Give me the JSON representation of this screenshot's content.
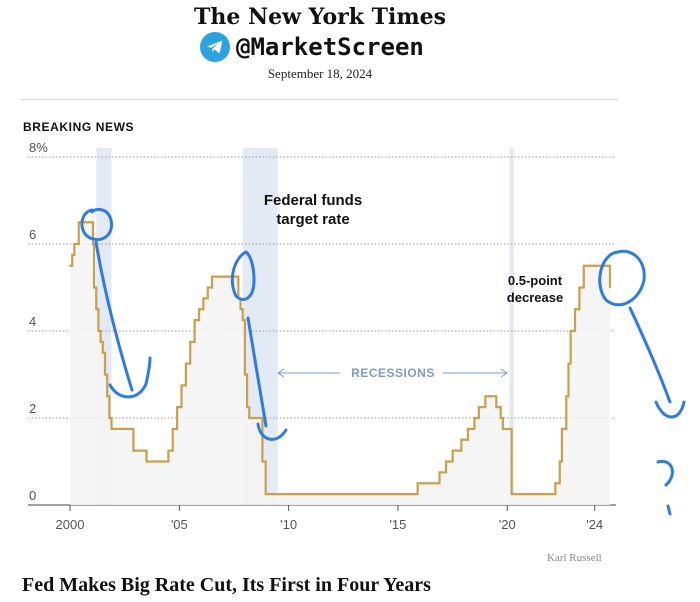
{
  "header": {
    "masthead": "The New York Times",
    "telegram_handle": "@MarketScreen",
    "date": "September 18, 2024",
    "kicker": "BREAKING NEWS"
  },
  "footer": {
    "credit": "Karl Russell",
    "headline": "Fed Makes Big Rate Cut, Its First in Four Years"
  },
  "colors": {
    "line": "#c9a04e",
    "area": "#f4f4f4",
    "recession": "#e3eaf4",
    "recession_label": "#7e9cc4",
    "grid": "#9a9a9a",
    "annotation_ink": "#2f7be0",
    "telegram": "#2ba3de"
  },
  "chart_data": {
    "type": "line",
    "title": "Federal funds target rate",
    "ylim": [
      0,
      8
    ],
    "xlim": [
      2000,
      2024.7
    ],
    "y_ticks": [
      0,
      2,
      4,
      6,
      8
    ],
    "y_tick_labels": [
      "0",
      "2",
      "4",
      "6",
      "8%"
    ],
    "x_ticks": [
      2000,
      2005,
      2010,
      2015,
      2020,
      2024
    ],
    "x_tick_labels": [
      "2000",
      "'05",
      "'10",
      "'15",
      "'20",
      "'24"
    ],
    "grid": true,
    "recessions": [
      [
        2001.2,
        2001.9
      ],
      [
        2007.9,
        2009.5
      ],
      [
        2020.1,
        2020.3
      ]
    ],
    "recession_label": "RECESSIONS",
    "annotations": [
      "Federal funds target rate",
      "0.5-point decrease"
    ],
    "handwritten_marks": [
      "?"
    ],
    "series": [
      {
        "x": [
          2000.0,
          2000.1,
          2000.2,
          2000.4,
          2000.9,
          2001.05,
          2001.1,
          2001.2,
          2001.3,
          2001.4,
          2001.5,
          2001.6,
          2001.7,
          2001.8,
          2001.9,
          2002.9,
          2003.5,
          2004.5,
          2004.7,
          2004.9,
          2005.1,
          2005.3,
          2005.5,
          2005.7,
          2005.9,
          2006.1,
          2006.3,
          2006.5,
          2007.7,
          2007.8,
          2007.9,
          2008.0,
          2008.1,
          2008.2,
          2008.8,
          2008.95,
          2015.9,
          2016.9,
          2017.2,
          2017.5,
          2017.9,
          2018.2,
          2018.5,
          2018.7,
          2019.0,
          2019.5,
          2019.7,
          2019.8,
          2020.2,
          2022.2,
          2022.4,
          2022.5,
          2022.7,
          2022.8,
          2022.9,
          2023.1,
          2023.3,
          2023.5,
          2024.7
        ],
        "y": [
          5.5,
          5.75,
          6.0,
          6.5,
          6.5,
          6.0,
          5.0,
          4.5,
          4.0,
          3.75,
          3.5,
          3.0,
          2.5,
          2.0,
          1.75,
          1.25,
          1.0,
          1.25,
          1.75,
          2.25,
          2.75,
          3.25,
          3.75,
          4.25,
          4.5,
          4.75,
          5.0,
          5.25,
          4.75,
          4.5,
          4.25,
          3.0,
          2.25,
          2.0,
          1.0,
          0.25,
          0.5,
          0.75,
          1.0,
          1.25,
          1.5,
          1.75,
          2.0,
          2.25,
          2.5,
          2.25,
          2.0,
          1.75,
          0.25,
          0.5,
          1.0,
          1.75,
          2.5,
          3.25,
          4.0,
          4.5,
          5.0,
          5.5,
          5.0
        ]
      }
    ]
  }
}
